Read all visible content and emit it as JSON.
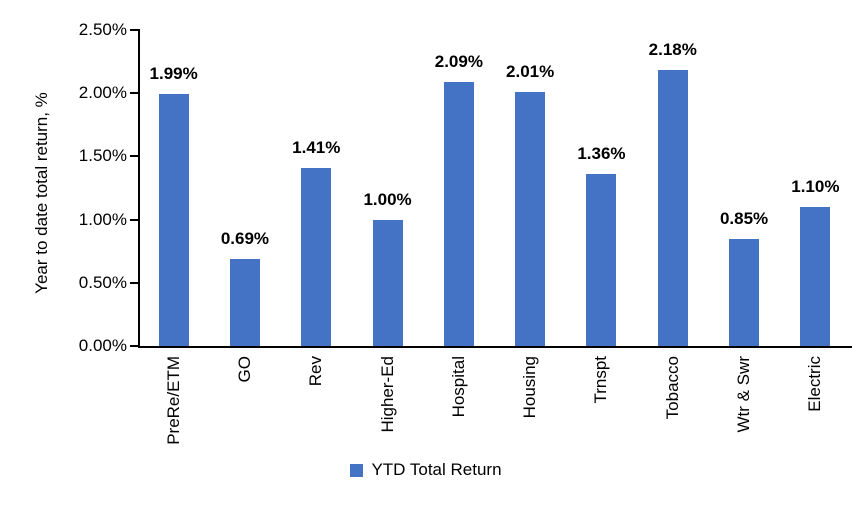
{
  "chart_data": {
    "type": "bar",
    "title": "",
    "ylabel": "Year to date total return, %",
    "xlabel": "",
    "categories": [
      "PreRe/ETM",
      "GO",
      "Rev",
      "Higher-Ed",
      "Hospital",
      "Housing",
      "Trnspt",
      "Tobacco",
      "Wtr & Swr",
      "Electric"
    ],
    "values": [
      1.99,
      0.69,
      1.41,
      1.0,
      2.09,
      2.01,
      1.36,
      2.18,
      0.85,
      1.1
    ],
    "value_labels": [
      "1.99%",
      "0.69%",
      "1.41%",
      "1.00%",
      "2.09%",
      "2.01%",
      "1.36%",
      "2.18%",
      "0.85%",
      "1.10%"
    ],
    "y_ticks": [
      "2.50%",
      "2.00%",
      "1.50%",
      "1.00%",
      "0.50%",
      "0.00%"
    ],
    "y_tick_values": [
      2.5,
      2.0,
      1.5,
      1.0,
      0.5,
      0.0
    ],
    "ylim": [
      0,
      2.5
    ],
    "grid": "off",
    "legend_position": "bottom-center",
    "series_name": "YTD Total Return"
  },
  "legend": {
    "label": "YTD Total Return"
  },
  "colors": {
    "bar_fill": "#4472C4",
    "axis": "#000000",
    "text": "#000000",
    "background": "#ffffff"
  }
}
